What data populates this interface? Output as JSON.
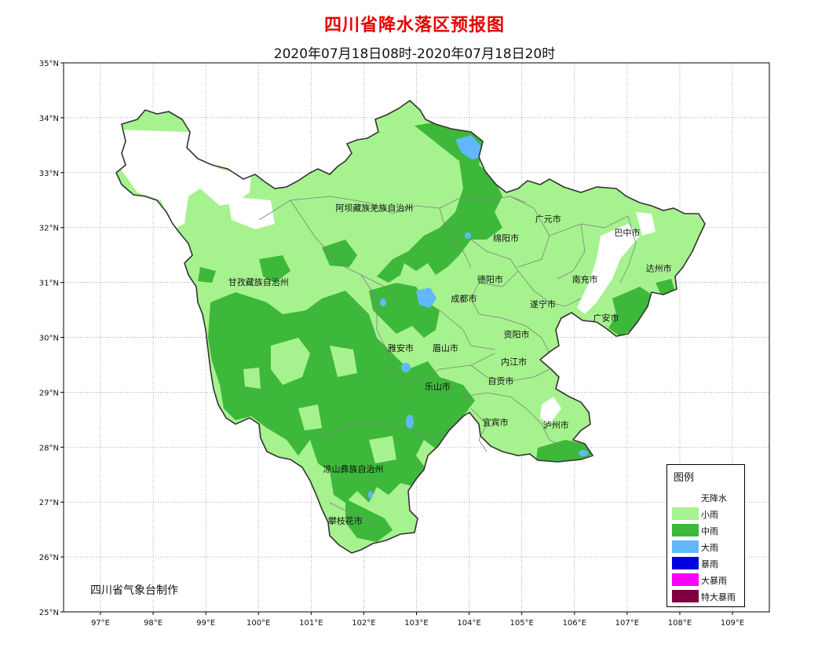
{
  "title": "四川省降水落区预报图",
  "subtitle": "2020年07月18日08时-2020年07月18日20时",
  "producer": "四川省气象台制作",
  "axes": {
    "lon_ticks": [
      "97°E",
      "98°E",
      "99°E",
      "100°E",
      "101°E",
      "102°E",
      "103°E",
      "104°E",
      "105°E",
      "106°E",
      "107°E",
      "108°E",
      "109°E"
    ],
    "lat_ticks": [
      "35°N",
      "34°N",
      "33°N",
      "32°N",
      "31°N",
      "30°N",
      "29°N",
      "28°N",
      "27°N",
      "26°N",
      "25°N"
    ],
    "lon_range": [
      96.3,
      109.7
    ],
    "lat_range": [
      25,
      35
    ],
    "grid": "dotted"
  },
  "regions": [
    {
      "name": "阿坝藏族羌族自治州",
      "lon": 102.2,
      "lat": 32.3
    },
    {
      "name": "甘孜藏族自治州",
      "lon": 100.0,
      "lat": 30.95
    },
    {
      "name": "凉山彝族自治州",
      "lon": 101.8,
      "lat": 27.55
    },
    {
      "name": "广元市",
      "lon": 105.5,
      "lat": 32.1
    },
    {
      "name": "巴中市",
      "lon": 107.0,
      "lat": 31.85
    },
    {
      "name": "绵阳市",
      "lon": 104.7,
      "lat": 31.75
    },
    {
      "name": "达州市",
      "lon": 107.6,
      "lat": 31.2
    },
    {
      "name": "德阳市",
      "lon": 104.4,
      "lat": 31.0
    },
    {
      "name": "南充市",
      "lon": 106.2,
      "lat": 31.0
    },
    {
      "name": "成都市",
      "lon": 103.9,
      "lat": 30.65
    },
    {
      "name": "遂宁市",
      "lon": 105.4,
      "lat": 30.55
    },
    {
      "name": "广安市",
      "lon": 106.6,
      "lat": 30.3
    },
    {
      "name": "资阳市",
      "lon": 104.9,
      "lat": 30.0
    },
    {
      "name": "雅安市",
      "lon": 102.7,
      "lat": 29.75
    },
    {
      "name": "眉山市",
      "lon": 103.55,
      "lat": 29.75
    },
    {
      "name": "内江市",
      "lon": 104.85,
      "lat": 29.5
    },
    {
      "name": "自贡市",
      "lon": 104.6,
      "lat": 29.15
    },
    {
      "name": "乐山市",
      "lon": 103.4,
      "lat": 29.05
    },
    {
      "name": "宜宾市",
      "lon": 104.5,
      "lat": 28.4
    },
    {
      "name": "泸州市",
      "lon": 105.65,
      "lat": 28.35
    },
    {
      "name": "攀枝花市",
      "lon": 101.65,
      "lat": 26.6
    }
  ],
  "legend": {
    "title": "图例",
    "items": [
      {
        "label": "无降水",
        "color": "#ffffff"
      },
      {
        "label": "小雨",
        "color": "#a6f28e"
      },
      {
        "label": "中雨",
        "color": "#3db83b"
      },
      {
        "label": "大雨",
        "color": "#61b8ff"
      },
      {
        "label": "暴雨",
        "color": "#0000e1"
      },
      {
        "label": "大暴雨",
        "color": "#fa00fa"
      },
      {
        "label": "特大暴雨",
        "color": "#800040"
      }
    ]
  }
}
